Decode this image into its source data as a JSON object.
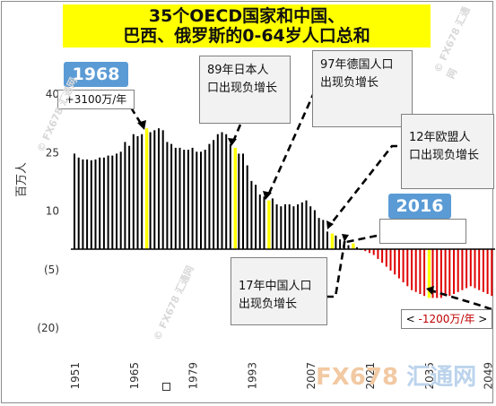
{
  "title": {
    "line1": "35个OECD国家和中国、",
    "line2": "巴西、俄罗斯的0-64岁人口总和"
  },
  "callouts": {
    "tag_1968": "1968",
    "note_1968": "+3100万/年",
    "japan_line1": "89年日本人",
    "japan_line2": "口出现负增长",
    "germany_line1": "97年德国人口",
    "germany_line2": "出现负增长",
    "eu_line1": "12年欧盟人",
    "eu_line2": "口出现负增长",
    "tag_2016": "2016",
    "china_line1": "17年中国人口",
    "china_line2": "出现负增长",
    "neg_open": "<",
    "neg_value": "-1200万/年",
    "neg_close": ">"
  },
  "watermark": {
    "mark": "© FX678 汇通网",
    "logo_a": "FX678",
    "logo_b": "汇通网"
  },
  "colors": {
    "bar_black": "#000000",
    "bar_red": "#e00000",
    "bar_yellow": "#ffff00",
    "tag_blue": "#5b9bd5",
    "title_yellow": "#ffff00"
  },
  "chart_data": {
    "type": "bar",
    "ylabel": "百万人",
    "ylim": [
      -20,
      40
    ],
    "yticks": [
      {
        "value": 40,
        "label": "40"
      },
      {
        "value": 25,
        "label": "25"
      },
      {
        "value": 10,
        "label": "10"
      },
      {
        "value": -5,
        "label": "(5)"
      },
      {
        "value": -20,
        "label": "(20)"
      }
    ],
    "xticks": [
      "1951",
      "1965",
      "1979",
      "1993",
      "2007",
      "2021",
      "2035",
      "2049"
    ],
    "x_start": 1951,
    "x_end": 2050,
    "highlight_years": [
      1968,
      1989,
      1997,
      2012,
      2017,
      2035
    ],
    "values": [
      24.5,
      23.5,
      23,
      23,
      22.8,
      23,
      23.5,
      23.5,
      24,
      24,
      24.5,
      25,
      27.5,
      26.5,
      29.5,
      29,
      29.5,
      31,
      30,
      30.5,
      31,
      30.5,
      27.5,
      27,
      26,
      26,
      25.5,
      25.5,
      26,
      25,
      25,
      25.5,
      27,
      28,
      29.5,
      30,
      29.5,
      27,
      26,
      24.5,
      24.5,
      21.5,
      17.5,
      16.5,
      14,
      13.5,
      12.5,
      13,
      11.5,
      11,
      11.5,
      11.5,
      11,
      11.5,
      12,
      12.5,
      11,
      10,
      8,
      7.5,
      4.5,
      4,
      3.5,
      2.5,
      2,
      1,
      1.5,
      0.5,
      0,
      -0.5,
      -1,
      -1.5,
      -2.5,
      -3.5,
      -4.5,
      -5.5,
      -6.5,
      -7.5,
      -8.5,
      -9.5,
      -10.5,
      -11,
      -11.5,
      -12,
      -12.5,
      -12.5,
      -12.5,
      -12.5,
      -12,
      -12,
      -11.5,
      -11,
      -10.5,
      -10,
      -9.5,
      -10,
      -10.5,
      -11,
      -11.5,
      -12
    ]
  }
}
